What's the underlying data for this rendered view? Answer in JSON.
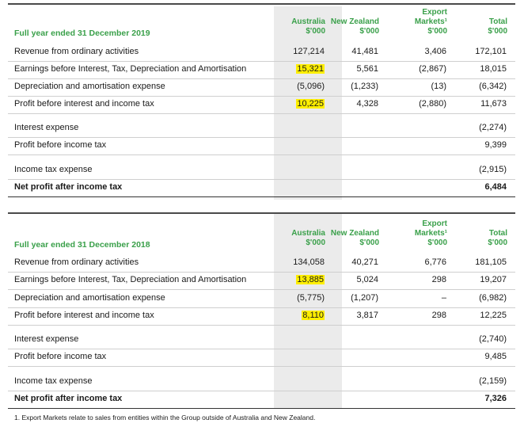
{
  "headers": {
    "australia": [
      "Australia",
      "$'000"
    ],
    "new_zealand": [
      "New Zealand",
      "$'000"
    ],
    "export": [
      "Export",
      "Markets¹",
      "$'000"
    ],
    "total": [
      "Total",
      "$'000"
    ]
  },
  "table_2019": {
    "title": "Full year ended 31 December 2019",
    "rows": [
      {
        "label": "Revenue from ordinary activities",
        "aus": "127,214",
        "nz": "41,481",
        "exp": "3,406",
        "total": "172,101",
        "hl": false,
        "bold": false
      },
      {
        "label": "Earnings before Interest, Tax, Depreciation and Amortisation",
        "aus": "15,321",
        "nz": "5,561",
        "exp": "(2,867)",
        "total": "18,015",
        "hl": true,
        "bold": false
      },
      {
        "label": "Depreciation and amortisation expense",
        "aus": "(5,096)",
        "nz": "(1,233)",
        "exp": "(13)",
        "total": "(6,342)",
        "hl": false,
        "bold": false
      },
      {
        "label": "Profit before interest and income tax",
        "aus": "10,225",
        "nz": "4,328",
        "exp": "(2,880)",
        "total": "11,673",
        "hl": true,
        "bold": false
      },
      {
        "label": "Interest expense",
        "aus": "",
        "nz": "",
        "exp": "",
        "total": "(2,274)",
        "hl": false,
        "bold": false
      },
      {
        "label": "Profit before income tax",
        "aus": "",
        "nz": "",
        "exp": "",
        "total": "9,399",
        "hl": false,
        "bold": false
      },
      {
        "label": "Income tax expense",
        "aus": "",
        "nz": "",
        "exp": "",
        "total": "(2,915)",
        "hl": false,
        "bold": false
      },
      {
        "label": "Net profit after income tax",
        "aus": "",
        "nz": "",
        "exp": "",
        "total": "6,484",
        "hl": false,
        "bold": true
      }
    ]
  },
  "table_2018": {
    "title": "Full year ended 31 December 2018",
    "rows": [
      {
        "label": "Revenue from ordinary activities",
        "aus": "134,058",
        "nz": "40,271",
        "exp": "6,776",
        "total": "181,105",
        "hl": false,
        "bold": false
      },
      {
        "label": "Earnings before Interest, Tax, Depreciation and Amortisation",
        "aus": "13,885",
        "nz": "5,024",
        "exp": "298",
        "total": "19,207",
        "hl": true,
        "bold": false
      },
      {
        "label": "Depreciation and amortisation expense",
        "aus": "(5,775)",
        "nz": "(1,207)",
        "exp": "–",
        "total": "(6,982)",
        "hl": false,
        "bold": false
      },
      {
        "label": "Profit before interest and income tax",
        "aus": "8,110",
        "nz": "3,817",
        "exp": "298",
        "total": "12,225",
        "hl": true,
        "bold": false
      },
      {
        "label": "Interest expense",
        "aus": "",
        "nz": "",
        "exp": "",
        "total": "(2,740)",
        "hl": false,
        "bold": false
      },
      {
        "label": "Profit before income tax",
        "aus": "",
        "nz": "",
        "exp": "",
        "total": "9,485",
        "hl": false,
        "bold": false
      },
      {
        "label": "Income tax expense",
        "aus": "",
        "nz": "",
        "exp": "",
        "total": "(2,159)",
        "hl": false,
        "bold": false
      },
      {
        "label": "Net profit after income tax",
        "aus": "",
        "nz": "",
        "exp": "",
        "total": "7,326",
        "hl": false,
        "bold": true
      }
    ]
  },
  "footnote": "1. Export Markets relate to sales from entities within the Group outside of Australia and New Zealand.",
  "colors": {
    "accent": "#3aa04a",
    "highlight": "#ffef00",
    "shade": "#ebebeb"
  }
}
